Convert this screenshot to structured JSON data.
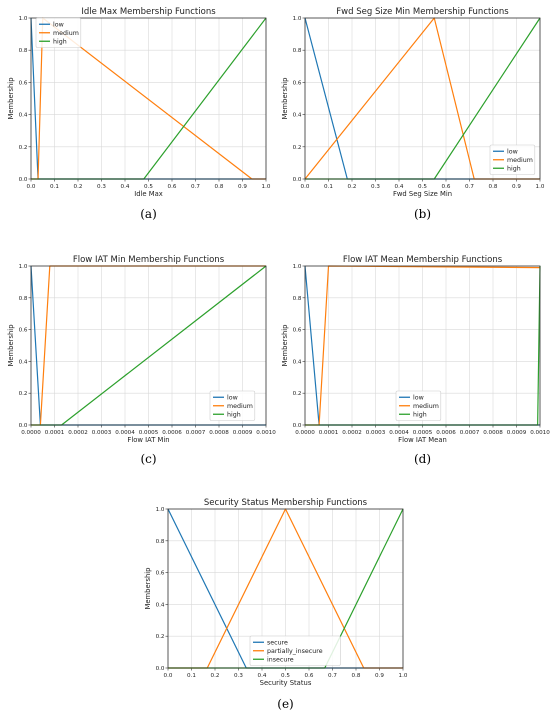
{
  "colors": {
    "low": "#1f77b4",
    "medium": "#ff7f0e",
    "high": "#2ca02c",
    "grid": "#d9d9d9",
    "axis": "#333333"
  },
  "chart_data": [
    {
      "type": "line",
      "title": "Idle Max Membership Functions",
      "xlabel": "Idle Max",
      "ylabel": "Membership",
      "caption": "(a)",
      "xlim": [
        0,
        1
      ],
      "ylim": [
        0,
        1
      ],
      "xticks": [
        "0.0",
        "0.1",
        "0.2",
        "0.3",
        "0.4",
        "0.5",
        "0.6",
        "0.7",
        "0.8",
        "0.9",
        "1.0"
      ],
      "yticks": [
        "0.0",
        "0.2",
        "0.4",
        "0.6",
        "0.8",
        "1.0"
      ],
      "grid": true,
      "legend_position": "upper-left",
      "series": [
        {
          "name": "low",
          "color": "#1f77b4",
          "x": [
            0,
            0.03,
            1
          ],
          "y": [
            1,
            0,
            0
          ]
        },
        {
          "name": "medium",
          "color": "#ff7f0e",
          "x": [
            0,
            0.03,
            0.05,
            0.94,
            1
          ],
          "y": [
            0,
            0,
            1,
            0,
            0
          ]
        },
        {
          "name": "high",
          "color": "#2ca02c",
          "x": [
            0,
            0.48,
            1
          ],
          "y": [
            0,
            0,
            1
          ]
        }
      ]
    },
    {
      "type": "line",
      "title": "Fwd Seg Size Min Membership Functions",
      "xlabel": "Fwd Seg Size Min",
      "ylabel": "Membership",
      "caption": "(b)",
      "xlim": [
        0,
        1
      ],
      "ylim": [
        0,
        1
      ],
      "xticks": [
        "0.0",
        "0.1",
        "0.2",
        "0.3",
        "0.4",
        "0.5",
        "0.6",
        "0.7",
        "0.8",
        "0.9",
        "1.0"
      ],
      "yticks": [
        "0.0",
        "0.2",
        "0.4",
        "0.6",
        "0.8",
        "1.0"
      ],
      "grid": true,
      "legend_position": "lower-right",
      "series": [
        {
          "name": "low",
          "color": "#1f77b4",
          "x": [
            0,
            0.18,
            1
          ],
          "y": [
            1,
            0,
            0
          ]
        },
        {
          "name": "medium",
          "color": "#ff7f0e",
          "x": [
            0,
            0.55,
            0.72,
            1
          ],
          "y": [
            0,
            1,
            0,
            0
          ]
        },
        {
          "name": "high",
          "color": "#2ca02c",
          "x": [
            0,
            0.55,
            1
          ],
          "y": [
            0,
            0,
            1
          ]
        }
      ]
    },
    {
      "type": "line",
      "title": "Flow IAT Min Membership Functions",
      "xlabel": "Flow IAT Min",
      "ylabel": "Membership",
      "caption": "(c)",
      "xlim": [
        0,
        0.001
      ],
      "ylim": [
        0,
        1
      ],
      "xticks": [
        "0.0000",
        "0.0001",
        "0.0002",
        "0.0003",
        "0.0004",
        "0.0005",
        "0.0006",
        "0.0007",
        "0.0008",
        "0.0009",
        "0.0010"
      ],
      "yticks": [
        "0.0",
        "0.2",
        "0.4",
        "0.6",
        "0.8",
        "1.0"
      ],
      "grid": true,
      "legend_position": "lower-right",
      "series": [
        {
          "name": "low",
          "color": "#1f77b4",
          "x": [
            0,
            4e-05,
            0.001
          ],
          "y": [
            1,
            0,
            0
          ]
        },
        {
          "name": "medium",
          "color": "#ff7f0e",
          "x": [
            0,
            4e-05,
            8e-05,
            0.001
          ],
          "y": [
            0,
            0,
            1,
            1
          ]
        },
        {
          "name": "high",
          "color": "#2ca02c",
          "x": [
            0,
            0.00013,
            0.001
          ],
          "y": [
            0,
            0,
            1
          ]
        }
      ]
    },
    {
      "type": "line",
      "title": "Flow IAT Mean Membership Functions",
      "xlabel": "Flow IAT Mean",
      "ylabel": "Membership",
      "caption": "(d)",
      "xlim": [
        0,
        0.001
      ],
      "ylim": [
        0,
        1
      ],
      "xticks": [
        "0.0000",
        "0.0001",
        "0.0002",
        "0.0003",
        "0.0004",
        "0.0005",
        "0.0006",
        "0.0007",
        "0.0008",
        "0.0009",
        "0.0010"
      ],
      "yticks": [
        "0.0",
        "0.2",
        "0.4",
        "0.6",
        "0.8",
        "1.0"
      ],
      "grid": true,
      "legend_position": "lower-right",
      "series": [
        {
          "name": "low",
          "color": "#1f77b4",
          "x": [
            0,
            6e-05,
            0.001
          ],
          "y": [
            1,
            0,
            0
          ]
        },
        {
          "name": "medium",
          "color": "#ff7f0e",
          "x": [
            0,
            6e-05,
            0.0001,
            0.001
          ],
          "y": [
            0,
            0,
            1,
            0.99
          ]
        },
        {
          "name": "high",
          "color": "#2ca02c",
          "x": [
            0,
            0.00099,
            0.001
          ],
          "y": [
            0,
            0,
            1
          ]
        }
      ]
    },
    {
      "type": "line",
      "title": "Security Status Membership Functions",
      "xlabel": "Security Status",
      "ylabel": "Membership",
      "caption": "(e)",
      "xlim": [
        0,
        1
      ],
      "ylim": [
        0,
        1
      ],
      "xticks": [
        "0.0",
        "0.1",
        "0.2",
        "0.3",
        "0.4",
        "0.5",
        "0.6",
        "0.7",
        "0.8",
        "0.9",
        "1.0"
      ],
      "yticks": [
        "0.0",
        "0.2",
        "0.4",
        "0.6",
        "0.8",
        "1.0"
      ],
      "grid": true,
      "legend_position": "lower-left-center",
      "series": [
        {
          "name": "secure",
          "color": "#1f77b4",
          "x": [
            0,
            0.333,
            1
          ],
          "y": [
            1,
            0,
            0
          ]
        },
        {
          "name": "partially_insecure",
          "color": "#ff7f0e",
          "x": [
            0,
            0.167,
            0.5,
            0.833,
            1
          ],
          "y": [
            0,
            0,
            1,
            0,
            0
          ]
        },
        {
          "name": "insecure",
          "color": "#2ca02c",
          "x": [
            0,
            0.667,
            1
          ],
          "y": [
            0,
            0,
            1
          ]
        }
      ]
    }
  ]
}
